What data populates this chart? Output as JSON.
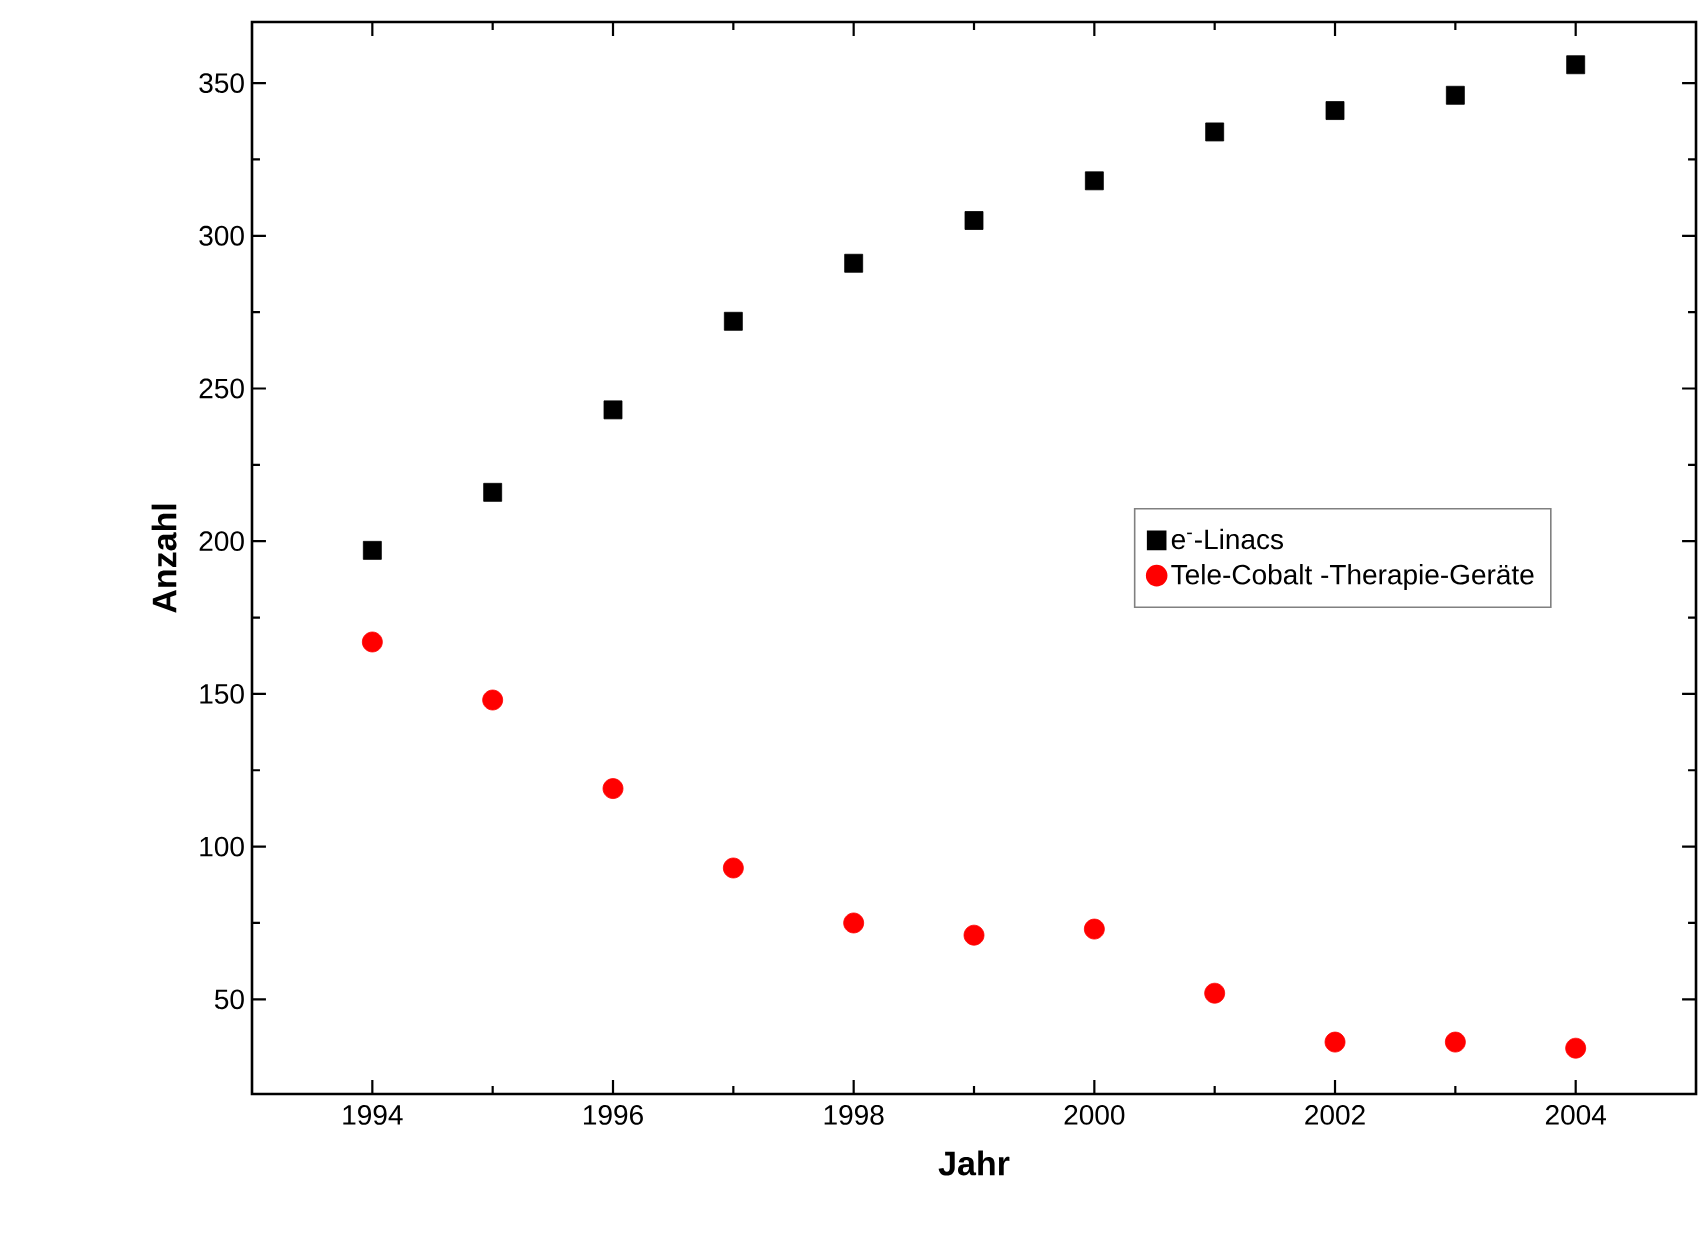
{
  "chart_data": {
    "type": "scatter",
    "xlabel": "Jahr",
    "ylabel": "Anzahl",
    "x": [
      1994,
      1995,
      1996,
      1997,
      1998,
      1999,
      2000,
      2001,
      2002,
      2003,
      2004
    ],
    "series": [
      {
        "name": "e$^{-}$-Linacs",
        "color": "#000000",
        "marker": "square",
        "values": [
          197,
          216,
          243,
          272,
          291,
          305,
          318,
          334,
          341,
          346,
          356
        ]
      },
      {
        "name": "Tele-Cobalt -Therapie-Geräte",
        "color": "#ff0000",
        "marker": "circle",
        "values": [
          167,
          148,
          119,
          93,
          75,
          71,
          73,
          52,
          36,
          36,
          34
        ]
      }
    ],
    "xlim": [
      1993,
      2005
    ],
    "ylim": [
      19,
      370
    ],
    "xticks": [
      1994,
      1996,
      1998,
      2000,
      2002,
      2004
    ],
    "yticks": [
      50,
      100,
      150,
      200,
      250,
      300,
      350
    ],
    "grid": false,
    "legend": "center right"
  }
}
